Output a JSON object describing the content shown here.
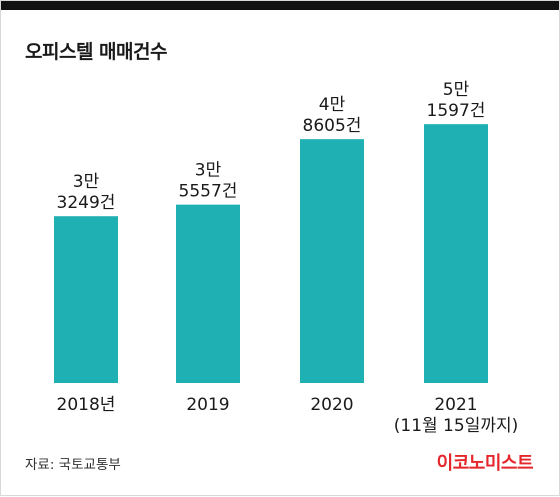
{
  "title": "오피스텔 매매건수",
  "source": "자료: 국토교통부",
  "brand": "이코노미스트",
  "colors": {
    "top_bar": "#111111",
    "bar": "#1fb0b4",
    "brand": "#e5262b"
  },
  "chart_data": {
    "type": "bar",
    "title": "오피스텔 매매건수",
    "xlabel": "",
    "ylabel": "",
    "ylim": [
      0,
      60000
    ],
    "grid": false,
    "legend": "none",
    "categories": [
      "2018년",
      "2019",
      "2020",
      "2021"
    ],
    "category_notes": [
      "",
      "",
      "",
      "(11월 15일까지)"
    ],
    "values": [
      33249,
      35557,
      48605,
      51597
    ],
    "value_labels": [
      [
        "3만",
        "3249건"
      ],
      [
        "3만",
        "5557건"
      ],
      [
        "4만",
        "8605건"
      ],
      [
        "5만",
        "1597건"
      ]
    ]
  }
}
